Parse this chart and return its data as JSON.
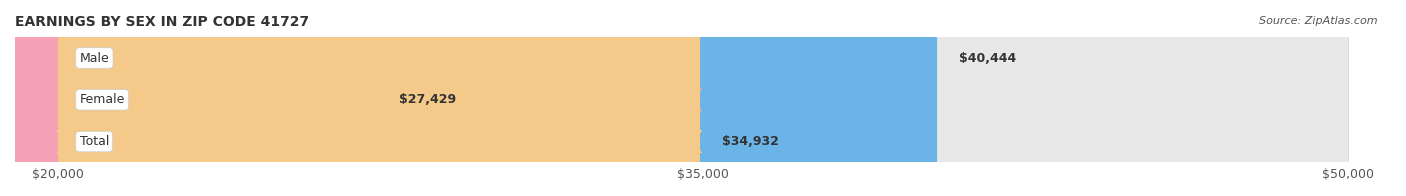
{
  "title": "EARNINGS BY SEX IN ZIP CODE 41727",
  "source": "Source: ZipAtlas.com",
  "categories": [
    "Male",
    "Female",
    "Total"
  ],
  "values": [
    40444,
    27429,
    34932
  ],
  "bar_colors": [
    "#6ab4e8",
    "#f4a0b5",
    "#f5c98a"
  ],
  "bar_bg_color": "#e8e8e8",
  "x_min": 20000,
  "x_max": 50000,
  "xticks": [
    20000,
    35000,
    50000
  ],
  "xtick_labels": [
    "$20,000",
    "$35,000",
    "$50,000"
  ],
  "value_labels": [
    "$40,444",
    "$27,429",
    "$34,932"
  ],
  "label_bg_color": "#ffffff",
  "title_fontsize": 10,
  "tick_fontsize": 9,
  "bar_label_fontsize": 9,
  "figsize": [
    14.06,
    1.96
  ],
  "dpi": 100
}
